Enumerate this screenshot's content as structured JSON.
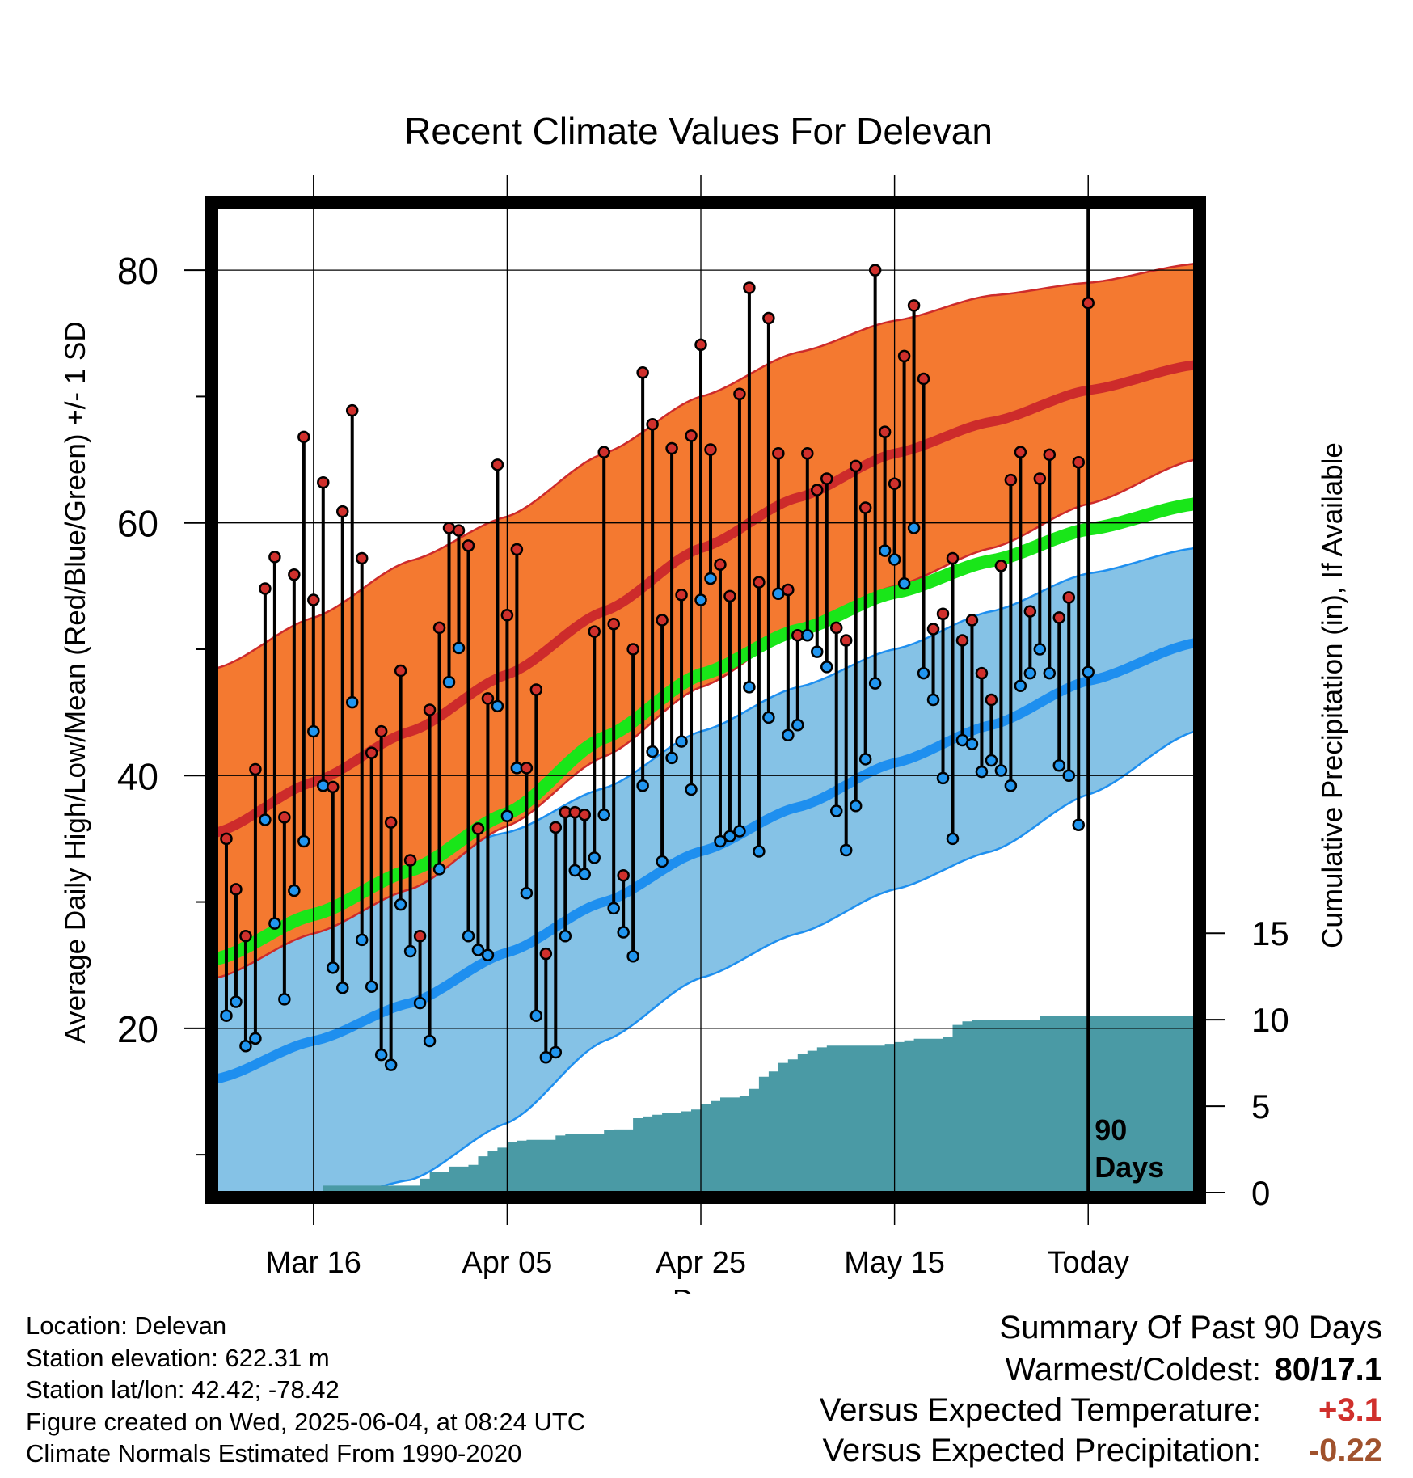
{
  "colors": {
    "high_band": "#f47930",
    "high_mean": "#cd2b2b",
    "low_band": "#85c2e6",
    "low_mean": "#1e8fef",
    "mean": "#19e619",
    "precip": "#4a9aa5",
    "high_marker": "#d0302c",
    "low_marker": "#2196f0",
    "stem": "#000000",
    "warm_value": "#d0302c",
    "dry_value": "#a0522d"
  },
  "chart_data": {
    "type": "line",
    "title": "Recent Climate Values For Delevan",
    "xlabel": "Day",
    "ylabel": "Average Daily High/Low/Mean (Red/Blue/Green) +/- 1 SD",
    "y2label": "Cumulative Precipitation (in), If Available",
    "ylim": [
      7,
      85
    ],
    "y2lim": [
      0,
      57
    ],
    "yticks": [
      20,
      40,
      60,
      80
    ],
    "y2ticks": [
      0,
      5,
      10,
      15
    ],
    "xlim": [
      0,
      101
    ],
    "xticks": [
      {
        "day": 10,
        "label": "Mar 16"
      },
      {
        "day": 30,
        "label": "Apr 05"
      },
      {
        "day": 50,
        "label": "Apr 25"
      },
      {
        "day": 70,
        "label": "May 15"
      },
      {
        "day": 90,
        "label": "Today"
      }
    ],
    "grid": true,
    "today_day": 90,
    "today_label": [
      "90",
      "Days"
    ],
    "normals": {
      "days": [
        0,
        10,
        20,
        30,
        40,
        50,
        60,
        70,
        80,
        90,
        101
      ],
      "high_upper": [
        48.5,
        52.5,
        57,
        60.5,
        65.5,
        70,
        73.5,
        76,
        78,
        79,
        80.5
      ],
      "high_mean": [
        35.5,
        39.5,
        43.5,
        48,
        53,
        58,
        62,
        65.5,
        68,
        70.5,
        72.5
      ],
      "high_lower": [
        24,
        27.5,
        31,
        36,
        41.5,
        47,
        51.5,
        55,
        58,
        61.5,
        65
      ],
      "mean": [
        25.5,
        29,
        32.5,
        37,
        43,
        48,
        51.5,
        54.5,
        57,
        59.5,
        61.5
      ],
      "low_upper": [
        28,
        30,
        33,
        35.5,
        39,
        43.5,
        47,
        50,
        53,
        56,
        58
      ],
      "low_mean": [
        16,
        19,
        22,
        26,
        30,
        34,
        37.5,
        41,
        44,
        47.5,
        50.5
      ],
      "low_lower": [
        3.5,
        6,
        8,
        12.5,
        19,
        24,
        27.5,
        31,
        34,
        38.5,
        43.5
      ]
    },
    "highs": [
      35,
      31,
      27.3,
      40.5,
      54.8,
      57.3,
      36.7,
      55.9,
      66.8,
      53.9,
      63.2,
      39.1,
      60.9,
      68.9,
      57.2,
      41.8,
      43.5,
      36.3,
      48.3,
      33.3,
      27.3,
      45.2,
      51.7,
      59.6,
      59.4,
      58.2,
      35.8,
      46.1,
      64.6,
      52.7,
      57.9,
      40.6,
      46.8,
      25.9,
      35.9,
      37.1,
      37.1,
      36.9,
      51.4,
      65.6,
      52,
      32.1,
      50,
      71.9,
      67.8,
      52.3,
      65.9,
      54.3,
      66.9,
      74.1,
      65.8,
      56.7,
      54.2,
      70.2,
      78.6,
      55.3,
      76.2,
      65.5,
      54.7,
      51.1,
      65.5,
      62.6,
      63.5,
      51.7,
      50.7,
      64.5,
      61.2,
      80,
      67.2,
      63.1,
      73.2,
      77.2,
      71.4,
      51.6,
      52.8,
      57.2,
      50.7,
      52.3,
      48.1,
      46,
      56.6,
      63.4,
      65.6,
      53,
      63.5,
      65.4,
      52.5,
      54.1,
      64.8,
      77.4
    ],
    "lows": [
      21,
      22.1,
      18.6,
      19.2,
      36.5,
      28.3,
      22.3,
      30.9,
      34.8,
      43.5,
      39.2,
      24.8,
      23.2,
      45.8,
      27,
      23.3,
      17.9,
      17.1,
      29.8,
      26.1,
      22,
      19,
      32.6,
      47.4,
      50.1,
      27.3,
      26.2,
      25.8,
      45.5,
      36.8,
      40.6,
      30.7,
      21,
      17.7,
      18.1,
      27.3,
      32.5,
      32.2,
      33.5,
      36.9,
      29.5,
      27.6,
      25.7,
      39.2,
      41.9,
      33.2,
      41.4,
      42.7,
      38.9,
      53.9,
      55.6,
      34.8,
      35.2,
      35.6,
      47,
      34,
      44.6,
      54.4,
      43.2,
      44,
      51.1,
      49.8,
      48.6,
      37.2,
      34.1,
      37.6,
      41.3,
      47.3,
      57.8,
      57.1,
      55.2,
      59.6,
      48.1,
      46,
      39.8,
      35,
      42.8,
      42.5,
      40.3,
      41.2,
      40.4,
      39.2,
      47.1,
      48.1,
      50,
      48.1,
      40.8,
      40,
      36.1,
      48.2
    ],
    "precip": {
      "days": [
        0,
        10,
        11,
        21,
        22,
        24,
        26,
        27,
        28,
        29,
        30,
        31,
        32,
        35,
        36,
        40,
        41,
        43,
        44,
        45,
        46,
        48,
        49,
        50,
        51,
        52,
        53,
        54,
        55,
        56,
        57,
        58,
        59,
        60,
        61,
        62,
        63,
        67,
        68,
        69,
        70,
        71,
        72,
        75,
        76,
        77,
        78,
        79,
        80,
        84,
        85,
        101
      ],
      "values": [
        0,
        0,
        0.4,
        0.8,
        1.2,
        1.5,
        1.6,
        2.1,
        2.4,
        2.6,
        2.9,
        3.0,
        3.05,
        3.3,
        3.4,
        3.6,
        3.65,
        4.3,
        4.4,
        4.5,
        4.6,
        4.7,
        4.8,
        5.1,
        5.3,
        5.5,
        5.5,
        5.6,
        6.0,
        6.7,
        7.0,
        7.5,
        7.7,
        8.0,
        8.2,
        8.4,
        8.5,
        8.5,
        8.5,
        8.6,
        8.7,
        8.8,
        8.9,
        9.0,
        9.7,
        9.9,
        10.0,
        10.0,
        10.0,
        10.0,
        10.2,
        10.2
      ]
    }
  },
  "info": {
    "location": "Location: Delevan",
    "elevation": "Station elevation: 622.31 m",
    "latlon": "Station lat/lon: 42.42; -78.42",
    "created": "Figure created on Wed, 2025-06-04, at 08:24 UTC",
    "normals": "Climate Normals Estimated From 1990-2020"
  },
  "summary": {
    "title": "Summary Of Past 90 Days",
    "warmest_label": "Warmest/Coldest:",
    "warmest_value": "80/17.1",
    "temp_label": "Versus Expected Temperature:",
    "temp_value": "+3.1",
    "precip_label": "Versus Expected Precipitation:",
    "precip_value": "-0.22"
  }
}
